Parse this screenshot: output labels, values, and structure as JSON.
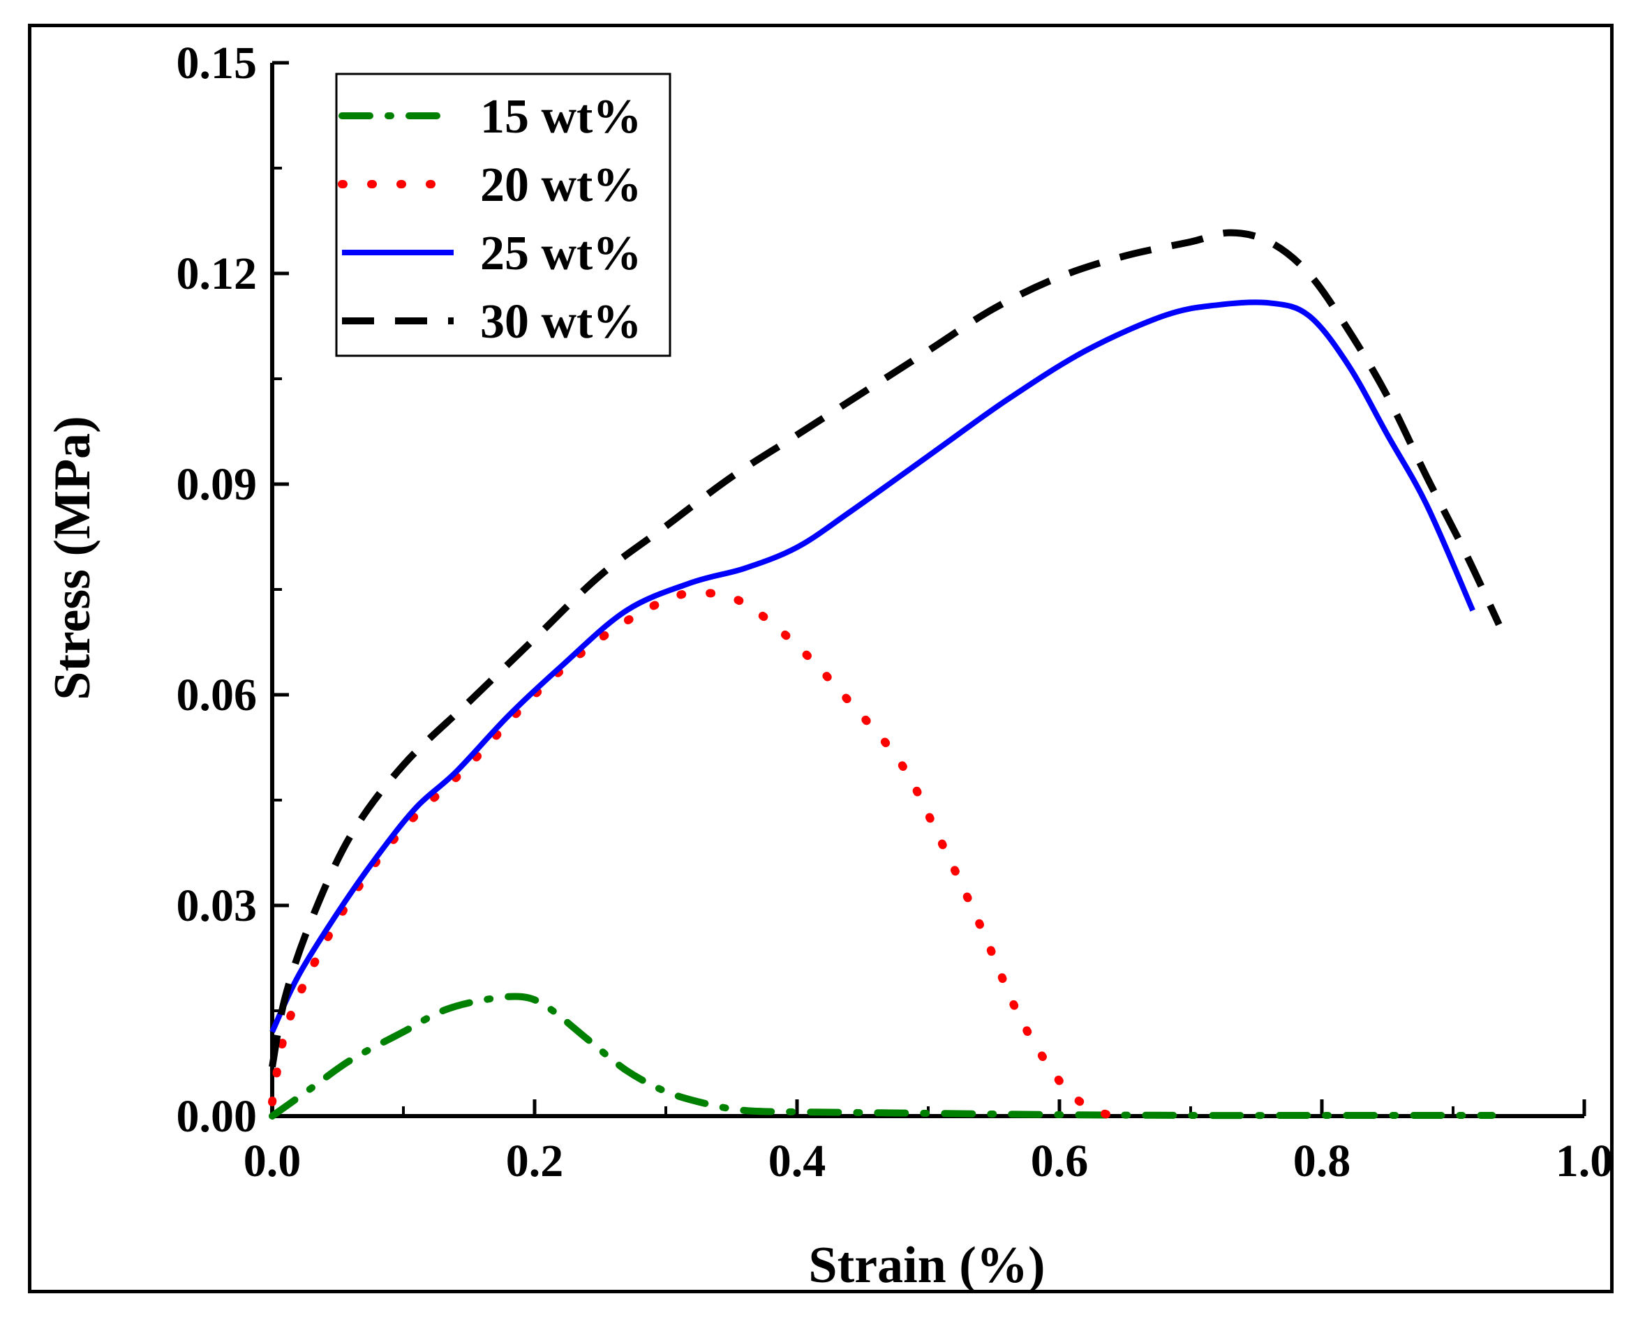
{
  "chart_data": {
    "type": "line",
    "title": "",
    "xlabel": "Strain (%)",
    "ylabel": "Stress (MPa)",
    "xlim": [
      0.0,
      1.0
    ],
    "ylim": [
      0.0,
      0.15
    ],
    "xticks": [
      0.0,
      0.2,
      0.4,
      0.6,
      0.8,
      1.0
    ],
    "xtick_labels": [
      "0.0",
      "0.2",
      "0.4",
      "0.6",
      "0.8",
      "1.0"
    ],
    "yticks": [
      0.0,
      0.03,
      0.06,
      0.09,
      0.12,
      0.15
    ],
    "ytick_labels": [
      "0.00",
      "0.03",
      "0.06",
      "0.09",
      "0.12",
      "0.15"
    ],
    "grid": false,
    "legend_position": "top-left",
    "series": [
      {
        "name": "15 wt%",
        "color": "#008000",
        "style": "dash-dot",
        "x": [
          0.0,
          0.03,
          0.06,
          0.1,
          0.13,
          0.16,
          0.19,
          0.21,
          0.24,
          0.27,
          0.3,
          0.33,
          0.36,
          0.4,
          0.45,
          0.5,
          0.6,
          0.7,
          0.8,
          0.93
        ],
        "y": [
          0.0,
          0.004,
          0.008,
          0.012,
          0.015,
          0.0165,
          0.017,
          0.0155,
          0.011,
          0.0065,
          0.0035,
          0.0018,
          0.0008,
          0.0006,
          0.0005,
          0.0004,
          0.0002,
          0.0001,
          0.0001,
          0.0001
        ]
      },
      {
        "name": "20 wt%",
        "color": "#ff0000",
        "style": "dotted",
        "x": [
          0.0,
          0.01,
          0.03,
          0.06,
          0.1,
          0.15,
          0.2,
          0.25,
          0.3,
          0.33,
          0.36,
          0.4,
          0.44,
          0.48,
          0.51,
          0.54,
          0.57,
          0.6,
          0.62,
          0.64
        ],
        "y": [
          0.002,
          0.012,
          0.021,
          0.031,
          0.041,
          0.05,
          0.06,
          0.068,
          0.0735,
          0.0745,
          0.073,
          0.067,
          0.059,
          0.05,
          0.039,
          0.027,
          0.014,
          0.005,
          0.0015,
          0.0
        ]
      },
      {
        "name": "25 wt%",
        "color": "#0000ff",
        "style": "solid",
        "x": [
          0.0,
          0.02,
          0.05,
          0.08,
          0.11,
          0.14,
          0.18,
          0.22,
          0.27,
          0.32,
          0.36,
          0.4,
          0.44,
          0.5,
          0.56,
          0.62,
          0.68,
          0.72,
          0.76,
          0.79,
          0.82,
          0.85,
          0.88,
          0.915
        ],
        "y": [
          0.012,
          0.02,
          0.029,
          0.037,
          0.044,
          0.049,
          0.057,
          0.064,
          0.072,
          0.076,
          0.078,
          0.081,
          0.086,
          0.094,
          0.102,
          0.109,
          0.114,
          0.1155,
          0.1158,
          0.114,
          0.107,
          0.097,
          0.087,
          0.072
        ]
      },
      {
        "name": "30 wt%",
        "color": "#000000",
        "style": "dashed",
        "x": [
          0.0,
          0.01,
          0.03,
          0.06,
          0.1,
          0.15,
          0.2,
          0.25,
          0.3,
          0.35,
          0.4,
          0.45,
          0.5,
          0.55,
          0.6,
          0.65,
          0.7,
          0.73,
          0.76,
          0.79,
          0.82,
          0.85,
          0.88,
          0.91,
          0.935
        ],
        "y": [
          0.007,
          0.017,
          0.028,
          0.04,
          0.05,
          0.059,
          0.068,
          0.077,
          0.084,
          0.091,
          0.097,
          0.103,
          0.109,
          0.115,
          0.1195,
          0.1225,
          0.1245,
          0.1258,
          0.1245,
          0.12,
          0.112,
          0.1025,
          0.091,
          0.08,
          0.07
        ]
      }
    ]
  }
}
